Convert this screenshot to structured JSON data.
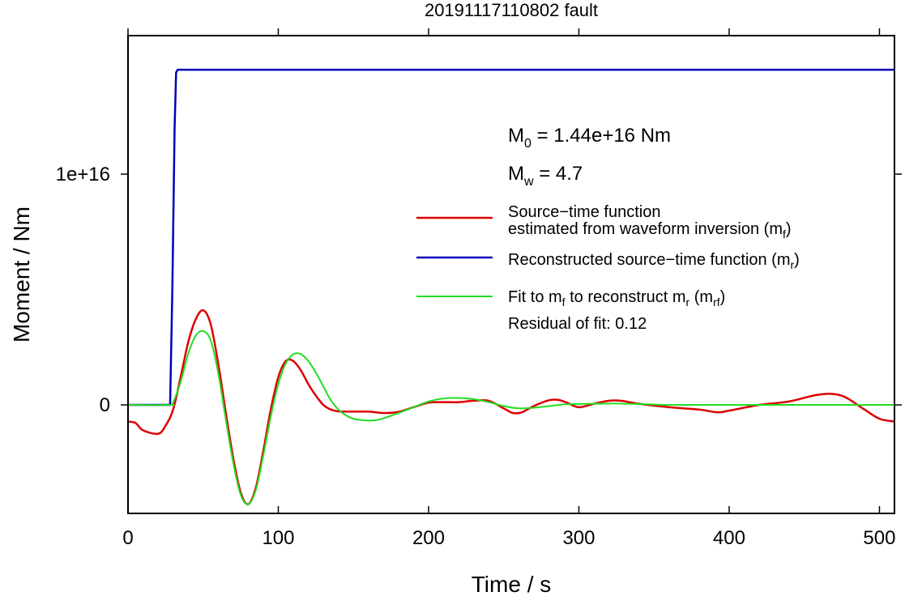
{
  "chart_data": {
    "type": "line",
    "title": "20191117110802 fault",
    "xlabel": "Time / s",
    "ylabel": "Moment / Nm",
    "xlim": [
      0,
      510
    ],
    "ylim": [
      -4700000000000000.0,
      1.6e+16
    ],
    "x_ticks": [
      0,
      100,
      200,
      300,
      400,
      500
    ],
    "x_tick_labels": [
      "0",
      "100",
      "200",
      "300",
      "400",
      "500"
    ],
    "y_ticks": [
      0,
      1e+16
    ],
    "y_tick_labels": [
      "0",
      "1e+16"
    ],
    "grid": false,
    "legend_position": "right",
    "annotations": {
      "m0_sym": "M",
      "m0_sub": "0",
      "m0_value": " = 1.44e+16 Nm",
      "mw_sym": "M",
      "mw_sub": "w",
      "mw_value": " = 4.7",
      "residual": "Residual of fit: 0.12"
    },
    "legend": [
      {
        "line1": "Source−time function",
        "line2_main": "estimated from waveform inversion (m",
        "line2_sub": "f",
        "line2_end": ")",
        "color": "#dd0000"
      },
      {
        "line1_main": "Reconstructed source−time function (m",
        "line1_sub": "r",
        "line1_end": ")",
        "color": "#0000bb"
      },
      {
        "a": "Fit to m",
        "a_sub": "f",
        "b": " to reconstruct m",
        "b_sub": "r",
        "c": " (m",
        "c_sub": "rf",
        "d": ")",
        "color": "#22dd22"
      }
    ],
    "series": [
      {
        "key": "mf",
        "color": "#dd0000",
        "x": [
          0,
          5,
          10,
          20,
          25,
          30,
          35,
          40,
          45,
          50,
          55,
          60,
          65,
          70,
          75,
          80,
          85,
          90,
          95,
          100,
          105,
          110,
          115,
          120,
          125,
          130,
          135,
          140,
          150,
          160,
          170,
          180,
          190,
          200,
          210,
          220,
          230,
          240,
          250,
          256,
          262,
          270,
          280,
          286,
          292,
          300,
          310,
          320,
          328,
          340,
          360,
          380,
          392,
          400,
          420,
          440,
          460,
          475,
          490,
          500,
          510
        ],
        "y": [
          -720000000000000.0,
          -780000000000000.0,
          -1100000000000000.0,
          -1250000000000000.0,
          -900000000000000.0,
          -200000000000000.0,
          1200000000000000.0,
          2700000000000000.0,
          3700000000000000.0,
          4100000000000000.0,
          3500000000000000.0,
          1800000000000000.0,
          -300000000000000.0,
          -2300000000000000.0,
          -3800000000000000.0,
          -4300000000000000.0,
          -3600000000000000.0,
          -2000000000000000.0,
          -200000000000000.0,
          1200000000000000.0,
          1900000000000000.0,
          1900000000000000.0,
          1500000000000000.0,
          900000000000000.0,
          400000000000000.0,
          0.0,
          -200000000000000.0,
          -280000000000000.0,
          -290000000000000.0,
          -290000000000000.0,
          -350000000000000.0,
          -300000000000000.0,
          -100000000000000.0,
          100000000000000.0,
          120000000000000.0,
          120000000000000.0,
          180000000000000.0,
          180000000000000.0,
          -150000000000000.0,
          -350000000000000.0,
          -320000000000000.0,
          -50000000000000.0,
          200000000000000.0,
          220000000000000.0,
          100000000000000.0,
          -100000000000000.0,
          50000000000000.0,
          180000000000000.0,
          180000000000000.0,
          50000000000000.0,
          -100000000000000.0,
          -200000000000000.0,
          -320000000000000.0,
          -250000000000000.0,
          0.0,
          150000000000000.0,
          450000000000000.0,
          400000000000000.0,
          -200000000000000.0,
          -600000000000000.0,
          -720000000000000.0
        ]
      },
      {
        "key": "mr",
        "color": "#0000bb",
        "x": [
          0,
          28,
          29.5,
          31,
          32,
          33,
          510
        ],
        "y": [
          0,
          0,
          5000000000000000.0,
          1.2e+16,
          1.44e+16,
          1.452e+16,
          1.452e+16
        ]
      },
      {
        "key": "mrf",
        "color": "#22dd22",
        "x": [
          0,
          28,
          30,
          35,
          40,
          45,
          50,
          55,
          60,
          65,
          70,
          75,
          80,
          85,
          90,
          95,
          100,
          105,
          110,
          115,
          120,
          125,
          130,
          135,
          140,
          145,
          150,
          155,
          160,
          165,
          170,
          180,
          190,
          200,
          210,
          220,
          230,
          240,
          250,
          260,
          270,
          280,
          290,
          300,
          320,
          340,
          360,
          400,
          450,
          510
        ],
        "y": [
          0,
          0,
          100000000000000.0,
          1000000000000000.0,
          2200000000000000.0,
          3000000000000000.0,
          3200000000000000.0,
          2800000000000000.0,
          1400000000000000.0,
          -600000000000000.0,
          -2500000000000000.0,
          -3900000000000000.0,
          -4300000000000000.0,
          -3700000000000000.0,
          -2200000000000000.0,
          -500000000000000.0,
          900000000000000.0,
          1800000000000000.0,
          2200000000000000.0,
          2200000000000000.0,
          1900000000000000.0,
          1400000000000000.0,
          800000000000000.0,
          200000000000000.0,
          -200000000000000.0,
          -450000000000000.0,
          -600000000000000.0,
          -650000000000000.0,
          -680000000000000.0,
          -660000000000000.0,
          -580000000000000.0,
          -350000000000000.0,
          -100000000000000.0,
          150000000000000.0,
          280000000000000.0,
          300000000000000.0,
          250000000000000.0,
          120000000000000.0,
          -50000000000000.0,
          -150000000000000.0,
          -120000000000000.0,
          -50000000000000.0,
          20000000000000.0,
          40000000000000.0,
          60000000000000.0,
          40000000000000.0,
          0.0,
          0.0,
          0.0,
          0.0
        ]
      }
    ]
  }
}
